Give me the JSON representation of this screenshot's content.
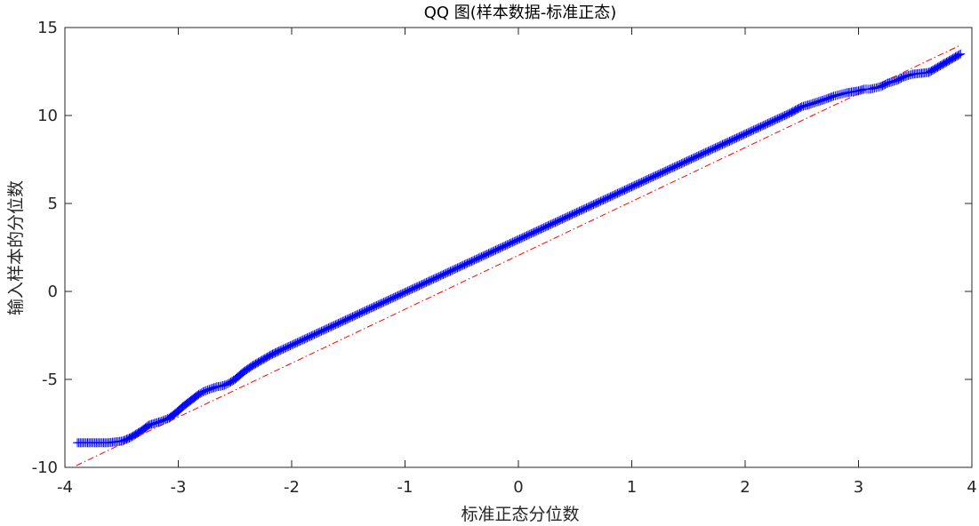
{
  "chart_data": {
    "type": "scatter",
    "title": "QQ 图(样本数据-标准正态)",
    "xlabel": "标准正态分位数",
    "ylabel": "输入样本的分位数",
    "xlim": [
      -4,
      4
    ],
    "ylim": [
      -10,
      15
    ],
    "x_ticks": [
      -4,
      -3,
      -2,
      -1,
      0,
      1,
      2,
      3,
      4
    ],
    "y_ticks": [
      -10,
      -5,
      0,
      5,
      10,
      15
    ],
    "grid": false,
    "box": true,
    "reference_line": {
      "name": "",
      "style": "dash-dot",
      "color": "#ff0000",
      "x": [
        -3.9,
        3.9
      ],
      "y": [
        -9.9,
        14.0
      ]
    },
    "series": [
      {
        "name": "",
        "marker": "+",
        "color": "#0000ff",
        "x": [
          -3.89,
          -3.62,
          -3.49,
          -3.42,
          -3.32,
          -3.26,
          -3.21,
          -3.16,
          -3.12,
          -3.08,
          -3.04,
          -3.0,
          -2.97,
          -2.94,
          -2.91,
          -2.88,
          -2.85,
          -2.82,
          -2.78,
          -2.74,
          -2.7,
          -2.66,
          -2.62,
          -2.58,
          -2.55,
          -2.5,
          -2.42,
          -2.34,
          -2.26,
          -2.18,
          -2.1,
          -2.0,
          -1.9,
          -1.8,
          -1.7,
          -1.6,
          -1.5,
          -1.4,
          -1.3,
          -1.2,
          -1.1,
          -1.0,
          -0.9,
          -0.8,
          -0.7,
          -0.6,
          -0.5,
          -0.4,
          -0.3,
          -0.2,
          -0.1,
          0.0,
          0.1,
          0.2,
          0.3,
          0.4,
          0.5,
          0.6,
          0.7,
          0.8,
          0.9,
          1.0,
          1.1,
          1.2,
          1.3,
          1.4,
          1.5,
          1.6,
          1.7,
          1.8,
          1.9,
          2.0,
          2.1,
          2.2,
          2.3,
          2.4,
          2.5,
          2.58,
          2.65,
          2.72,
          2.78,
          2.84,
          2.9,
          2.95,
          3.0,
          3.05,
          3.1,
          3.14,
          3.2,
          3.26,
          3.34,
          3.4,
          3.48,
          3.62,
          3.9
        ],
        "y": [
          -8.6,
          -8.6,
          -8.5,
          -8.3,
          -7.9,
          -7.6,
          -7.5,
          -7.4,
          -7.3,
          -7.2,
          -7.0,
          -6.8,
          -6.6,
          -6.45,
          -6.3,
          -6.15,
          -6.0,
          -5.85,
          -5.7,
          -5.6,
          -5.5,
          -5.42,
          -5.38,
          -5.3,
          -5.2,
          -5.0,
          -4.55,
          -4.2,
          -3.9,
          -3.6,
          -3.35,
          -3.05,
          -2.75,
          -2.45,
          -2.15,
          -1.85,
          -1.55,
          -1.25,
          -0.95,
          -0.65,
          -0.35,
          -0.05,
          0.25,
          0.55,
          0.85,
          1.15,
          1.45,
          1.75,
          2.05,
          2.35,
          2.65,
          2.95,
          3.25,
          3.55,
          3.85,
          4.15,
          4.45,
          4.75,
          5.05,
          5.35,
          5.65,
          5.95,
          6.25,
          6.55,
          6.85,
          7.15,
          7.45,
          7.75,
          8.05,
          8.35,
          8.65,
          8.95,
          9.25,
          9.55,
          9.85,
          10.15,
          10.5,
          10.65,
          10.8,
          10.95,
          11.1,
          11.2,
          11.3,
          11.35,
          11.4,
          11.5,
          11.5,
          11.55,
          11.65,
          11.85,
          12.0,
          12.2,
          12.35,
          12.45,
          13.5
        ]
      }
    ]
  }
}
